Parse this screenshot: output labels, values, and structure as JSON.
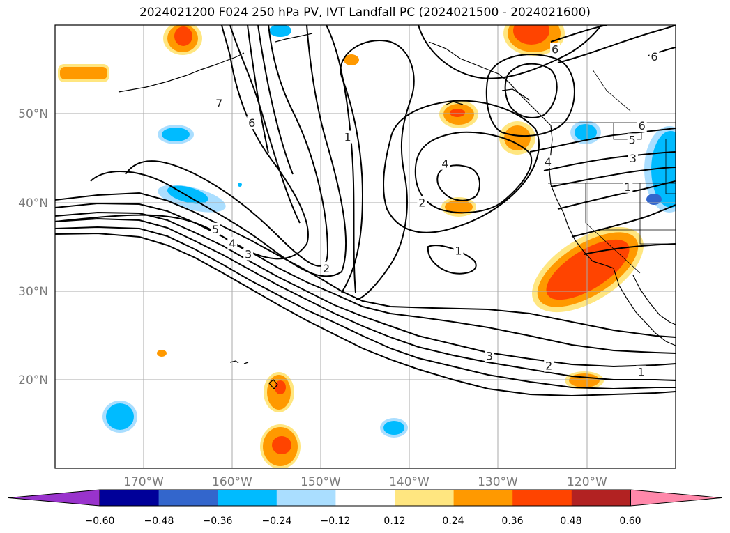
{
  "title": "2024021200 F024 250 hPa PV, IVT Landfall PC (2024021500 - 2024021600)",
  "map": {
    "lon_range": [
      -180,
      -110
    ],
    "lat_range": [
      10,
      60
    ],
    "lon_ticks": [
      {
        "lon": -170,
        "label": "170°W"
      },
      {
        "lon": -160,
        "label": "160°W"
      },
      {
        "lon": -150,
        "label": "150°W"
      },
      {
        "lon": -140,
        "label": "140°W"
      },
      {
        "lon": -130,
        "label": "130°W"
      },
      {
        "lon": -120,
        "label": "120°W"
      }
    ],
    "lat_ticks": [
      {
        "lat": 20,
        "label": "20°N"
      },
      {
        "lat": 30,
        "label": "30°N"
      },
      {
        "lat": 40,
        "label": "40°N"
      },
      {
        "lat": 50,
        "label": "50°N"
      }
    ],
    "grid": true,
    "contour_labels": [
      {
        "text": "1",
        "lon": -113.9,
        "lat": 20.8
      },
      {
        "text": "2",
        "lon": -124.3,
        "lat": 21.5
      },
      {
        "text": "3",
        "lon": -131.0,
        "lat": 22.6
      },
      {
        "text": "1",
        "lon": -134.5,
        "lat": 34.5
      },
      {
        "text": "2",
        "lon": -149.4,
        "lat": 32.5
      },
      {
        "text": "2",
        "lon": -138.6,
        "lat": 39.9
      },
      {
        "text": "4",
        "lon": -136.0,
        "lat": 44.3
      },
      {
        "text": "1",
        "lon": -147.0,
        "lat": 47.3
      },
      {
        "text": "6",
        "lon": -157.8,
        "lat": 48.9
      },
      {
        "text": "7",
        "lon": -161.5,
        "lat": 51.1
      },
      {
        "text": "5",
        "lon": -161.9,
        "lat": 36.9
      },
      {
        "text": "4",
        "lon": -160.0,
        "lat": 35.3
      },
      {
        "text": "3",
        "lon": -158.2,
        "lat": 34.1
      },
      {
        "text": "4",
        "lon": -124.4,
        "lat": 44.5
      },
      {
        "text": "3",
        "lon": -114.8,
        "lat": 44.9
      },
      {
        "text": "5",
        "lon": -114.9,
        "lat": 47.0
      },
      {
        "text": "1",
        "lon": -115.4,
        "lat": 41.7
      },
      {
        "text": "6",
        "lon": -113.8,
        "lat": 48.6
      },
      {
        "text": "6",
        "lon": -123.6,
        "lat": 57.2
      },
      {
        "text": "6",
        "lon": -112.4,
        "lat": 56.4
      }
    ]
  },
  "colorbar": {
    "levels": [
      "−0.60",
      "−0.48",
      "−0.36",
      "−0.24",
      "−0.12",
      "0.12",
      "0.24",
      "0.36",
      "0.48",
      "0.60"
    ],
    "colors": [
      "#9933cc",
      "#000099",
      "#3366cc",
      "#00bbff",
      "#aadeff",
      "#ffffff",
      "#ffe680",
      "#ff9900",
      "#ff4400",
      "#b22222",
      "#ff88aa"
    ],
    "extend": "both"
  }
}
